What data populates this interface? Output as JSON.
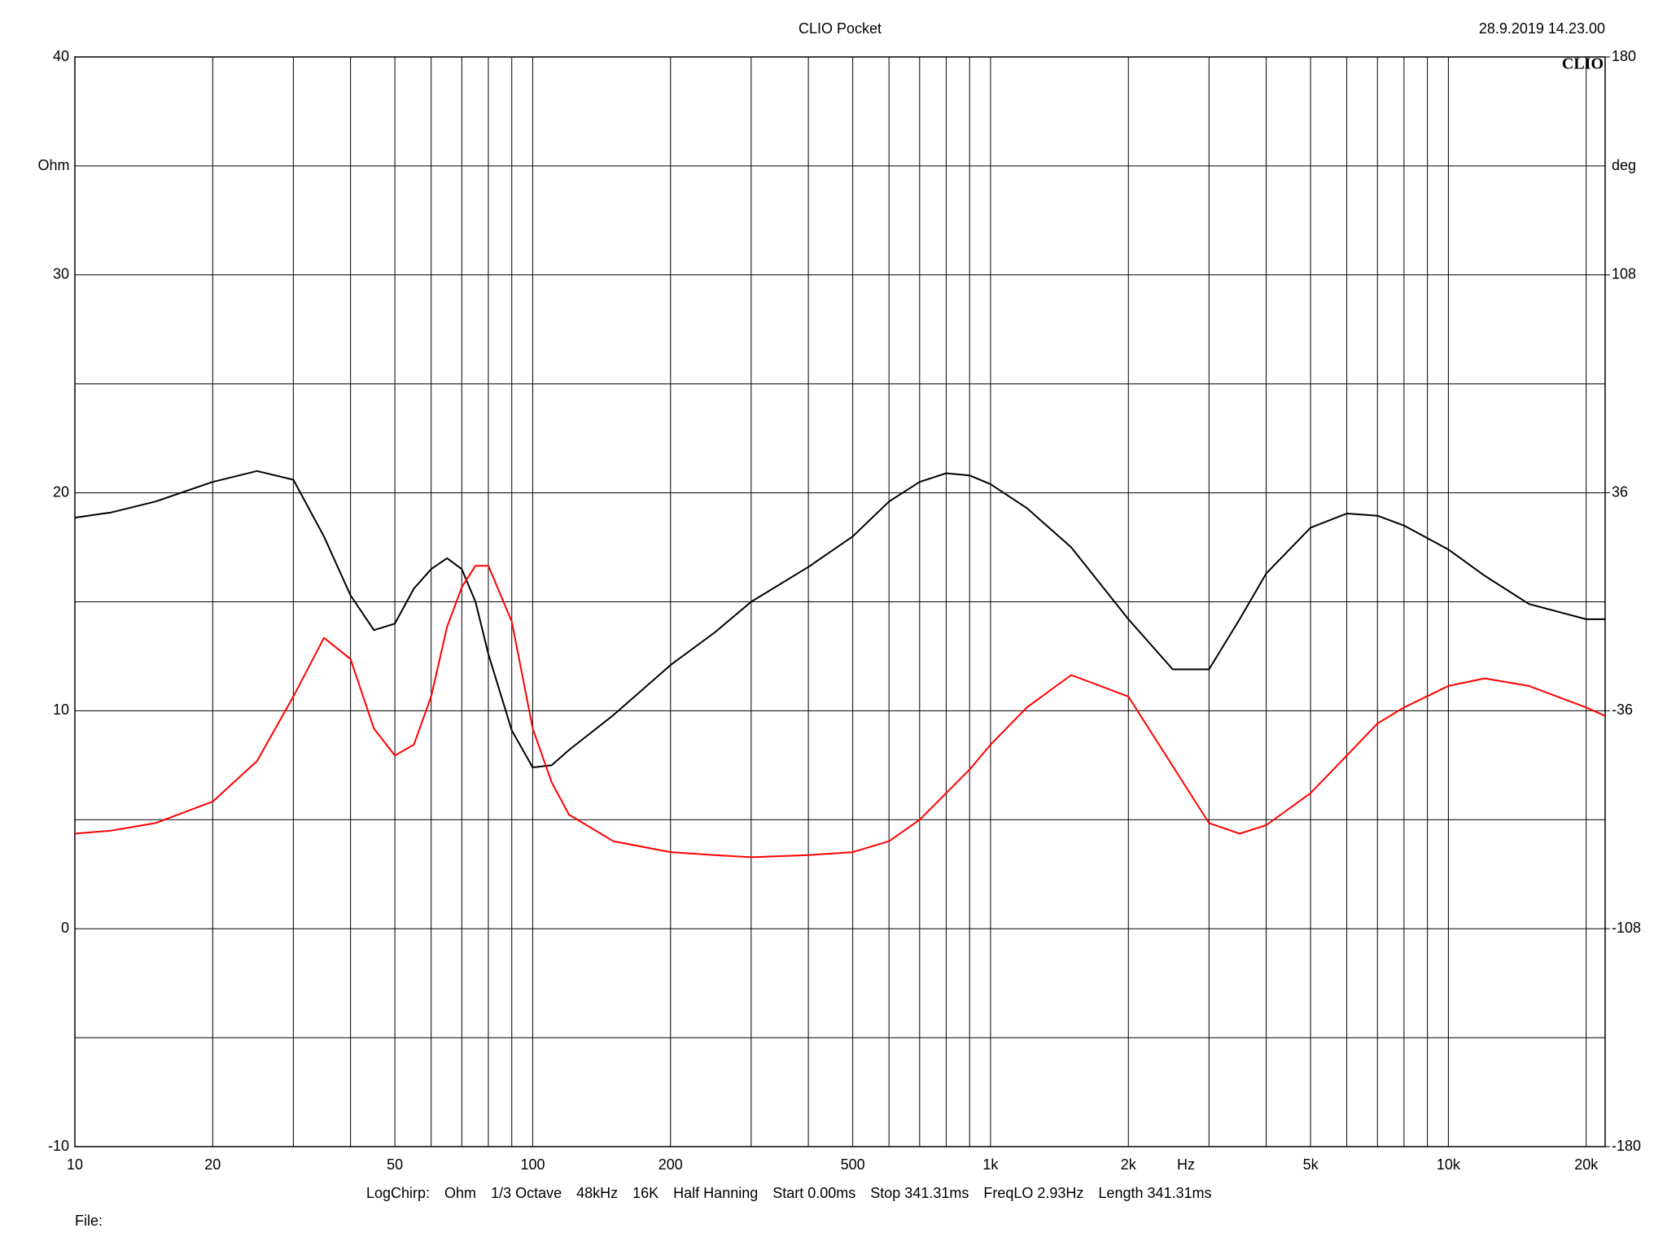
{
  "chart_data": {
    "type": "line",
    "title": "CLIO Pocket",
    "timestamp": "28.9.2019 14.23.00",
    "logo": "CLIO",
    "x_label": "Hz",
    "y_label": "Ohm",
    "y2_label": "deg",
    "footer": [
      "LogChirp:",
      "Ohm",
      "1/3 Octave",
      "48kHz",
      "16K",
      "Half Hanning",
      "Start 0.00ms",
      "Stop 341.31ms",
      "FreqLO 2.93Hz",
      "Length 341.31ms"
    ],
    "file_label": "File:",
    "x_scale": "log",
    "grid": true,
    "x": [
      10,
      12,
      15,
      20,
      25,
      30,
      35,
      40,
      45,
      50,
      55,
      60,
      65,
      70,
      75,
      80,
      90,
      100,
      110,
      120,
      150,
      200,
      250,
      300,
      400,
      500,
      600,
      700,
      800,
      900,
      1000,
      1200,
      1500,
      2000,
      2500,
      3000,
      3500,
      4000,
      5000,
      6000,
      7000,
      8000,
      10000,
      12000,
      15000,
      20000,
      22000
    ],
    "series": [
      {
        "color": "#000000",
        "values": [
          18.86,
          19.1,
          19.6,
          20.5,
          21.0,
          20.6,
          18.0,
          15.3,
          13.7,
          14.0,
          15.6,
          16.5,
          17.0,
          16.5,
          15.0,
          12.6,
          9.1,
          7.4,
          7.5,
          8.2,
          9.8,
          12.1,
          13.6,
          15.0,
          16.6,
          18.0,
          19.6,
          20.5,
          20.9,
          20.8,
          20.4,
          19.3,
          17.5,
          14.2,
          11.9,
          11.9,
          14.2,
          16.3,
          18.4,
          19.05,
          18.95,
          18.5,
          17.4,
          16.2,
          14.9,
          14.2,
          14.2
        ]
      },
      {
        "color": "#ff0000",
        "axis": "y2",
        "values": [
          -76.6,
          -75.6,
          -73.1,
          -66.0,
          -52.6,
          -31.3,
          -11.9,
          -18.9,
          -41.9,
          -50.8,
          -47.2,
          -31.3,
          -8.3,
          4.8,
          11.9,
          11.9,
          -6.5,
          -41.9,
          -59.6,
          -70.3,
          -79.1,
          -82.7,
          -83.7,
          -84.4,
          -83.7,
          -82.7,
          -79.1,
          -72.0,
          -63.2,
          -55.4,
          -47.2,
          -34.9,
          -24.2,
          -31.3,
          -54.3,
          -73.1,
          -76.6,
          -73.8,
          -63.2,
          -50.8,
          -40.2,
          -34.9,
          -27.8,
          -25.3,
          -27.8,
          -34.9,
          -37.7
        ]
      }
    ],
    "xlim": [
      10,
      22000
    ],
    "xticks": [
      10,
      20,
      50,
      100,
      200,
      500,
      {
        "value": 1000,
        "label": "1k"
      },
      {
        "value": 2000,
        "label": "2k"
      },
      {
        "value": 5000,
        "label": "5k"
      },
      {
        "value": 10000,
        "label": "10k"
      },
      {
        "value": 20000,
        "label": "20k"
      }
    ],
    "xgrid": [
      30,
      40,
      60,
      70,
      80,
      90,
      300,
      400,
      600,
      700,
      800,
      900,
      3000,
      4000,
      6000,
      7000,
      8000,
      9000
    ],
    "ylim": [
      -10,
      40
    ],
    "yticks": [
      -10,
      0,
      10,
      20,
      30,
      40
    ],
    "ygrid": [
      -5,
      5,
      15,
      25,
      35
    ],
    "y2lim": [
      -180,
      180
    ],
    "y2ticks": [
      -180,
      -108,
      -36,
      36,
      108,
      180
    ]
  }
}
